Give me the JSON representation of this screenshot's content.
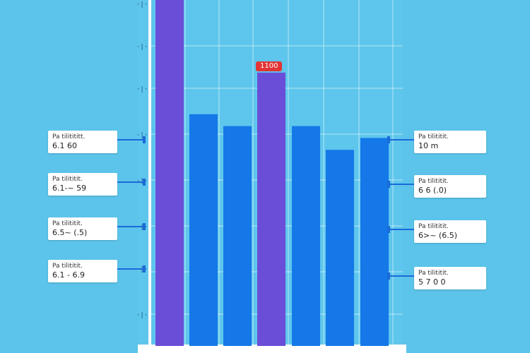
{
  "chart_data": {
    "type": "bar",
    "ylim": [
      0,
      6
    ],
    "grid": true,
    "values": [
      6.2,
      3.9,
      3.7,
      4.6,
      3.7,
      3.3,
      3.5
    ],
    "highlight_index": [
      0,
      3
    ],
    "colors": {
      "bar": "#1478e8",
      "highlight": "#6a4ed8",
      "badge": "#e23434",
      "background": "#5cc4ea"
    },
    "badge_label": "1100",
    "left_cards": [
      {
        "line1": "Pa tilitititt.",
        "line2": "6.1 60"
      },
      {
        "line1": "Pa tilititit.",
        "line2": "6.1-~ 59"
      },
      {
        "line1": "Pa tilititit.",
        "line2": "6.5~ (.5)"
      },
      {
        "line1": "Pa tilititit.",
        "line2": "6.1 - 6.9"
      }
    ],
    "right_cards": [
      {
        "line1": "Pa tilititit.",
        "line2": "10 m"
      },
      {
        "line1": "Pa tilititit.",
        "line2": "6 6 (.0)"
      },
      {
        "line1": "Pa tilititit.",
        "line2": "6>~ (6.5)"
      },
      {
        "line1": "Pa tilititit.",
        "line2": "5 7 0 0"
      }
    ]
  }
}
